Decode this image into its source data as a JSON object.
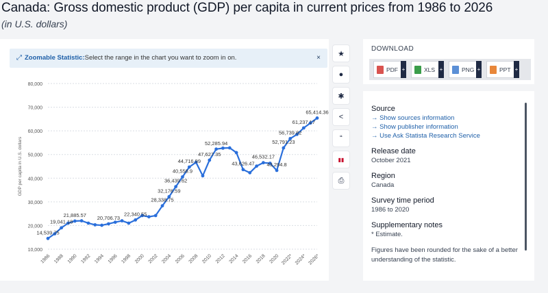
{
  "header": {
    "title": "Canada: Gross domestic product (GDP) per capita in current prices from 1986 to 2026",
    "subtitle": "(in U.S. dollars)"
  },
  "zoom": {
    "label": "Zoomable Statistic:",
    "text": "Select the range in the chart you want to zoom in on.",
    "close": "×"
  },
  "toolbar": [
    "star-icon",
    "bell-icon",
    "gear-icon",
    "share-icon",
    "quote-icon",
    "flag-icon",
    "print-icon"
  ],
  "toolbar_glyphs": [
    "★",
    "●",
    "✱",
    "<",
    "“",
    "▮▮",
    "⎙"
  ],
  "download": {
    "title": "DOWNLOAD",
    "buttons": [
      {
        "label": "PDF",
        "color": "#d9534f"
      },
      {
        "label": "XLS",
        "color": "#3a9d4a"
      },
      {
        "label": "PNG",
        "color": "#5b8fd6"
      },
      {
        "label": "PPT",
        "color": "#e8873a"
      }
    ]
  },
  "info": {
    "source_title": "Source",
    "source_links": [
      "Show sources information",
      "Show publisher information",
      "Use Ask Statista Research Service"
    ],
    "release_title": "Release date",
    "release_value": "October 2021",
    "region_title": "Region",
    "region_value": "Canada",
    "survey_title": "Survey time period",
    "survey_value": "1986 to 2020",
    "notes_title": "Supplementary notes",
    "notes_value": "* Estimate.",
    "notes_extra": "Figures have been rounded for the sake of a better understanding of the statistic."
  },
  "chart_data": {
    "type": "line",
    "ylabel": "GDP per capita in U.S. dollars",
    "ylim": [
      10000,
      80000
    ],
    "yticks": [
      10000,
      20000,
      30000,
      40000,
      50000,
      60000,
      70000,
      80000
    ],
    "ytick_labels": [
      "10,000",
      "20,000",
      "30,000",
      "40,000",
      "50,000",
      "60,000",
      "70,000",
      "80,000"
    ],
    "xtick_labels": [
      "1986",
      "1988",
      "1990",
      "1992",
      "1994",
      "1996",
      "1998",
      "2000",
      "2002",
      "2004",
      "2006",
      "2008",
      "2010",
      "2012",
      "2014",
      "2016",
      "2018",
      "2020",
      "2022*",
      "2024*",
      "2026*"
    ],
    "x": [
      1986,
      1987,
      1988,
      1989,
      1990,
      1991,
      1992,
      1993,
      1994,
      1995,
      1996,
      1997,
      1998,
      1999,
      2000,
      2001,
      2002,
      2003,
      2004,
      2005,
      2006,
      2007,
      2008,
      2009,
      2010,
      2011,
      2012,
      2013,
      2014,
      2015,
      2016,
      2017,
      2018,
      2019,
      2020,
      2021,
      2022,
      2023,
      2024,
      2025,
      2026
    ],
    "values": [
      14539.75,
      16500,
      19041.18,
      21000,
      21885.57,
      22000,
      21000,
      20300,
      20100,
      20706.73,
      21400,
      22000,
      21000,
      22340.55,
      24200,
      23700,
      24200,
      28338.75,
      32176.59,
      36439.62,
      40558.9,
      44716.99,
      46700,
      41000,
      47627.35,
      52285.94,
      52700,
      52800,
      50800,
      43626.47,
      42300,
      45100,
      46532.17,
      46300,
      43294.8,
      52791.23,
      56739.82,
      58500,
      61237.17,
      63300,
      65414.36
    ],
    "data_labels": [
      {
        "x": 1986,
        "text": "14,539.75"
      },
      {
        "x": 1988,
        "text": "19,041.18"
      },
      {
        "x": 1990,
        "text": "21,885.57"
      },
      {
        "x": 1995,
        "text": "20,706.73"
      },
      {
        "x": 1999,
        "text": "22,340.55"
      },
      {
        "x": 2003,
        "text": "28,338.75"
      },
      {
        "x": 2004,
        "text": "32,176.59"
      },
      {
        "x": 2005,
        "text": "36,439.62"
      },
      {
        "x": 2006,
        "text": "40,558.9"
      },
      {
        "x": 2007,
        "text": "44,716.99"
      },
      {
        "x": 2010,
        "text": "47,627.35"
      },
      {
        "x": 2011,
        "text": "52,285.94"
      },
      {
        "x": 2015,
        "text": "43,626.47"
      },
      {
        "x": 2018,
        "text": "46,532.17"
      },
      {
        "x": 2020,
        "text": "43,294.8"
      },
      {
        "x": 2021,
        "text": "52,791.23"
      },
      {
        "x": 2022,
        "text": "56,739.82"
      },
      {
        "x": 2024,
        "text": "61,237.17"
      },
      {
        "x": 2026,
        "text": "65,414.36"
      }
    ],
    "color": "#2a6fdb",
    "grid": true
  }
}
